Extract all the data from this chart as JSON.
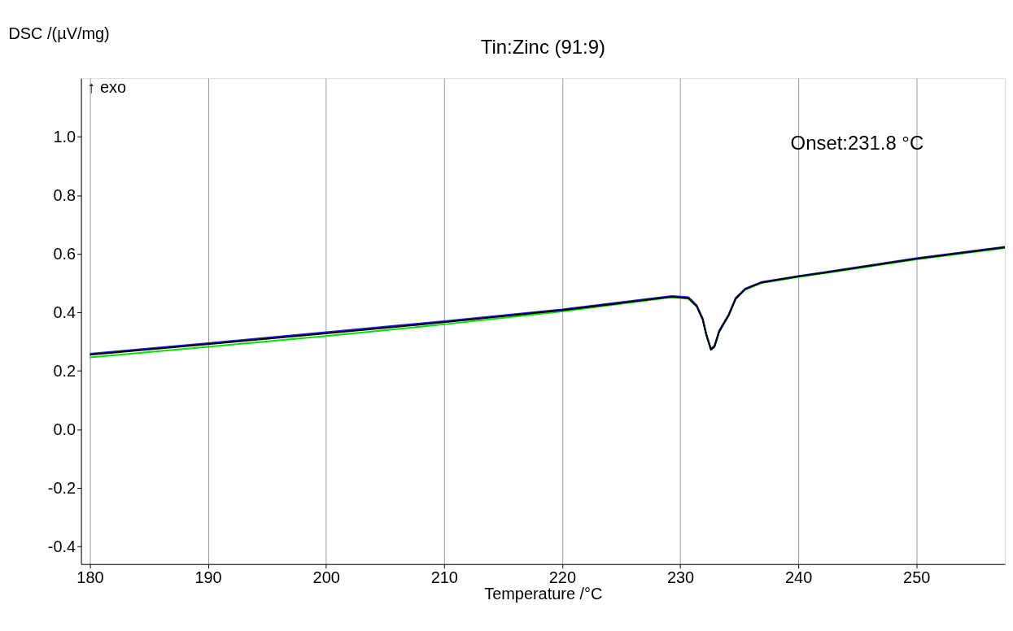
{
  "chart_data": {
    "type": "line",
    "title": "Tin:Zinc  (91:9)",
    "xlabel": "Temperature /°C",
    "ylabel": "DSC /(µV/mg)",
    "x": [
      180,
      190,
      200,
      210,
      220,
      229.3,
      230.7,
      231.4,
      231.9,
      232.2,
      232.6,
      232.9,
      233.3,
      234.1,
      234.7,
      235.5,
      236.9,
      240.1,
      242.3,
      250,
      257.5
    ],
    "series": [
      {
        "color": "#00e000",
        "values": [
          0.246,
          0.282,
          0.319,
          0.359,
          0.403,
          0.452,
          0.446,
          0.42,
          0.376,
          0.324,
          0.272,
          0.282,
          0.334,
          0.389,
          0.446,
          0.477,
          0.5,
          0.521,
          0.534,
          0.581,
          0.62
        ]
      },
      {
        "color": "#2020e0",
        "values": [
          0.259,
          0.295,
          0.332,
          0.37,
          0.41,
          0.456,
          0.452,
          0.424,
          0.38,
          0.328,
          0.276,
          0.286,
          0.338,
          0.393,
          0.45,
          0.481,
          0.504,
          0.525,
          0.538,
          0.585,
          0.624
        ]
      },
      {
        "color": "#000000",
        "values": [
          0.255,
          0.291,
          0.328,
          0.366,
          0.407,
          0.453,
          0.448,
          0.42,
          0.376,
          0.324,
          0.272,
          0.282,
          0.334,
          0.389,
          0.446,
          0.479,
          0.502,
          0.523,
          0.536,
          0.583,
          0.622
        ]
      }
    ],
    "xlim": [
      179.25,
      257.5
    ],
    "xticks": [
      180,
      190,
      200,
      210,
      220,
      230,
      240,
      250
    ],
    "ylim": [
      -0.46,
      1.2
    ],
    "yticks": [
      {
        "value": -0.4,
        "label": "-0.4"
      },
      {
        "value": -0.2,
        "label": "-0.2"
      },
      {
        "value": 0,
        "label": "0.0"
      },
      {
        "value": 0.2,
        "label": "0.2"
      },
      {
        "value": 0.4,
        "label": "0.4"
      },
      {
        "value": 0.6,
        "label": "0.6"
      },
      {
        "value": 0.8,
        "label": "0.8"
      },
      {
        "value": 1.0,
        "label": "1.0"
      }
    ],
    "grid": "x",
    "annotations": [
      "↑ exo",
      "Onset:231.8 °C"
    ]
  }
}
